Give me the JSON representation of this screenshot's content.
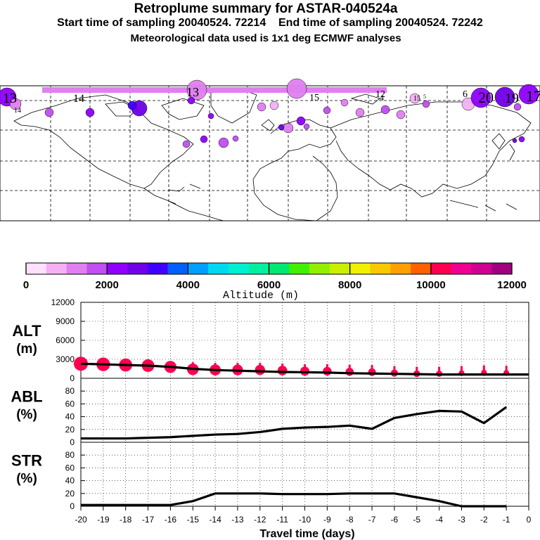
{
  "header": {
    "title": "Retroplume summary for ASTAR-040524a",
    "subtitle_start": "Start time of sampling 20040524. 72214",
    "subtitle_end": "End time of sampling 20040524. 72242",
    "subtitle_met": "Meteorological data used is 1x1 deg ECMWF analyses"
  },
  "colorbar": {
    "label": "Altitude (m)",
    "ticks": [
      "0",
      "2000",
      "4000",
      "6000",
      "8000",
      "10000",
      "12000"
    ],
    "colors": [
      "#ffe0ff",
      "#f5b0f5",
      "#e080f0",
      "#c050f0",
      "#9000ff",
      "#7000e8",
      "#4000ff",
      "#0060ff",
      "#00a0ff",
      "#00d8f0",
      "#00f0d0",
      "#00f0a0",
      "#00e870",
      "#40f000",
      "#90f000",
      "#c8f000",
      "#f0f000",
      "#f8c800",
      "#ffa000",
      "#ff6000",
      "#ff0050",
      "#f00090",
      "#d00090",
      "#a00080"
    ]
  },
  "map_labels": [
    "13",
    "14",
    "14",
    "13",
    "15",
    "12",
    "20",
    "19",
    "17",
    "6",
    "4",
    "15",
    "5"
  ],
  "chart_data": [
    {
      "type": "scatter+line",
      "name": "ALT",
      "ylabel": "ALT (m)",
      "ylabel_line1": "ALT",
      "ylabel_line2": "(m)",
      "yticks": [
        "0",
        "3000",
        "6000",
        "9000",
        "12000"
      ],
      "ylim": [
        0,
        12000
      ],
      "x": [
        -20,
        -19,
        -18,
        -17,
        -16,
        -15,
        -14,
        -13,
        -12,
        -11,
        -10,
        -9,
        -8,
        -7,
        -6,
        -5,
        -4,
        -3,
        -2,
        -1
      ],
      "line": [
        2300,
        2200,
        2100,
        2000,
        1800,
        1500,
        1300,
        1200,
        1100,
        1000,
        950,
        900,
        800,
        750,
        700,
        650,
        600,
        600,
        600,
        600
      ],
      "markers": [
        2300,
        2200,
        2100,
        2000,
        1800,
        1200,
        1100,
        1100,
        1100,
        1000,
        900,
        900,
        800,
        750,
        600,
        500,
        500,
        600,
        700,
        650
      ],
      "marker_color": "#ff0050"
    },
    {
      "type": "line",
      "name": "ABL",
      "ylabel": "ABL (%)",
      "ylabel_line1": "ABL",
      "ylabel_line2": "(%)",
      "yticks": [
        "0",
        "20",
        "40",
        "60",
        "80"
      ],
      "ylim": [
        0,
        100
      ],
      "x": [
        -20,
        -19,
        -18,
        -17,
        -16,
        -15,
        -14,
        -13,
        -12,
        -11,
        -10,
        -9,
        -8,
        -7,
        -6,
        -5,
        -4,
        -3,
        -2,
        -1
      ],
      "values": [
        6,
        6,
        6,
        7,
        8,
        10,
        12,
        13,
        16,
        21,
        23,
        24,
        26,
        21,
        38,
        44,
        49,
        48,
        30,
        55
      ]
    },
    {
      "type": "line",
      "name": "STR",
      "ylabel": "STR (%)",
      "ylabel_line1": "STR",
      "ylabel_line2": "(%)",
      "yticks": [
        "0",
        "20",
        "40",
        "60",
        "80"
      ],
      "ylim": [
        0,
        100
      ],
      "x": [
        -20,
        -19,
        -18,
        -17,
        -16,
        -15,
        -14,
        -13,
        -12,
        -11,
        -10,
        -9,
        -8,
        -7,
        -6,
        -5,
        -4,
        -3,
        -2,
        -1
      ],
      "values": [
        2,
        2,
        2,
        2,
        2,
        8,
        20,
        20,
        20,
        19,
        19,
        19,
        20,
        20,
        20,
        14,
        8,
        0,
        0,
        0
      ]
    }
  ],
  "xaxis": {
    "label": "Travel time (days)",
    "ticks": [
      "-20",
      "-19",
      "-18",
      "-17",
      "-16",
      "-15",
      "-14",
      "-13",
      "-12",
      "-11",
      "-10",
      "-9",
      "-8",
      "-7",
      "-6",
      "-5",
      "-4",
      "-3",
      "-2",
      "-1",
      "0"
    ]
  }
}
